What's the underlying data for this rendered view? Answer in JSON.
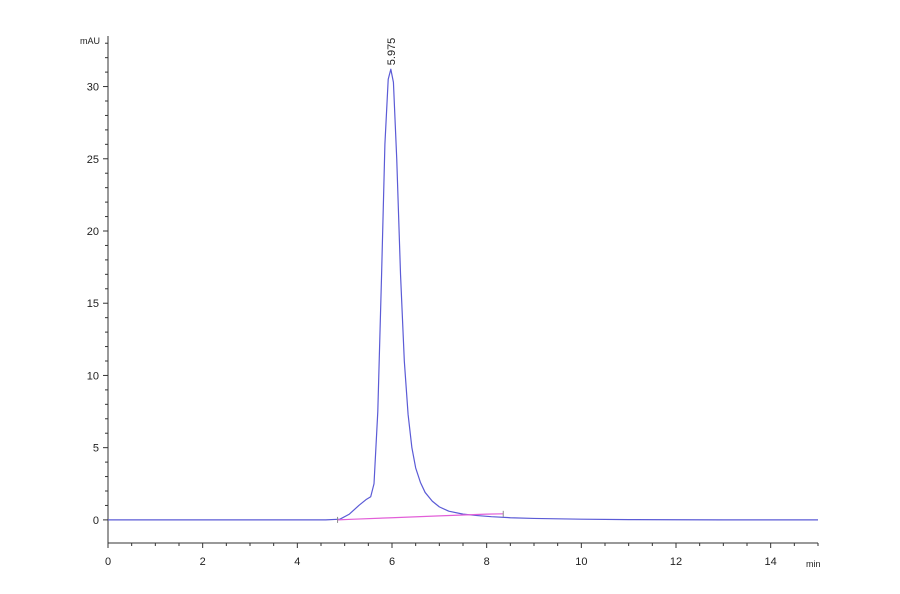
{
  "chart_data": {
    "type": "line",
    "ylabel": "mAU",
    "xlabel": "min",
    "xlim": [
      0,
      15
    ],
    "ylim": [
      -1.6,
      33.5
    ],
    "x_ticks": [
      0,
      2,
      4,
      6,
      8,
      10,
      12,
      14
    ],
    "y_ticks": [
      0,
      5,
      10,
      15,
      20,
      25,
      30
    ],
    "grid": false,
    "series": [
      {
        "color": "#5b5bd6",
        "x": [
          0,
          1,
          2,
          3,
          4,
          4.6,
          4.9,
          5.1,
          5.3,
          5.45,
          5.55,
          5.62,
          5.7,
          5.78,
          5.85,
          5.92,
          5.975,
          6.03,
          6.1,
          6.18,
          6.26,
          6.34,
          6.42,
          6.5,
          6.6,
          6.7,
          6.85,
          7.0,
          7.2,
          7.5,
          7.8,
          8.1,
          8.5,
          9.0,
          10,
          11,
          12,
          13,
          14,
          15
        ],
        "y": [
          0,
          0,
          0,
          0,
          0,
          0,
          0.05,
          0.4,
          1.0,
          1.4,
          1.6,
          2.5,
          7.5,
          17,
          26,
          30.5,
          31.2,
          30.3,
          25,
          17,
          11,
          7.3,
          5.0,
          3.6,
          2.6,
          1.9,
          1.3,
          0.9,
          0.6,
          0.4,
          0.3,
          0.22,
          0.15,
          0.1,
          0.05,
          0.02,
          0.01,
          0,
          0,
          0
        ]
      },
      {
        "color": "#e25fd8",
        "x": [
          4.85,
          5.2,
          6.0,
          7.0,
          8.0,
          8.35
        ],
        "y": [
          0,
          0.05,
          0.15,
          0.28,
          0.4,
          0.42
        ]
      }
    ],
    "annotations": [
      {
        "text": "5.975",
        "x": 5.975,
        "y": 31.2
      }
    ]
  }
}
